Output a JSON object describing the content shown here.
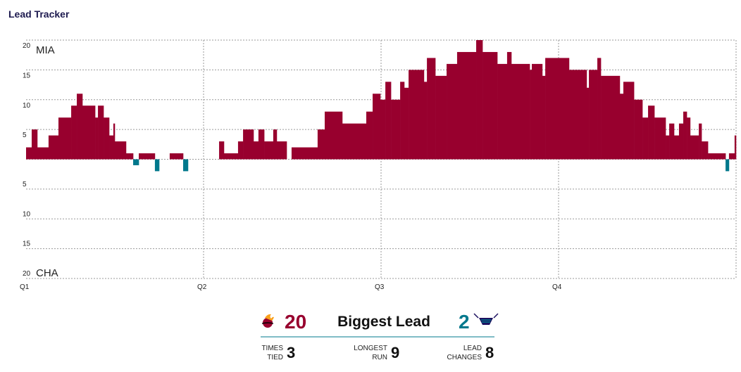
{
  "chart_data": {
    "type": "lead",
    "title": "Lead Tracker",
    "top_label": "MIA",
    "bottom_label": "CHA",
    "positive_color": "#98002e",
    "negative_color": "#00788c",
    "grid": true,
    "xlim": [
      0,
      48
    ],
    "xticks": [
      {
        "value": 0,
        "label": "Q1"
      },
      {
        "value": 12,
        "label": "Q2"
      },
      {
        "value": 24,
        "label": "Q3"
      },
      {
        "value": 36,
        "label": "Q4"
      }
    ],
    "ylim": [
      -20,
      20
    ],
    "yticks": [
      20,
      15,
      10,
      5,
      {
        "value": -5,
        "label": "5"
      },
      {
        "value": -10,
        "label": "10"
      },
      {
        "value": -15,
        "label": "15"
      },
      {
        "value": -20,
        "label": "20"
      }
    ],
    "x": [
      0,
      0.38,
      0.76,
      1.52,
      2.19,
      3.05,
      3.43,
      3.81,
      4.67,
      4.86,
      5.24,
      5.62,
      5.9,
      6.0,
      6.76,
      7.24,
      7.62,
      8.71,
      9.0,
      9.71,
      10.62,
      10.95,
      13.05,
      13.38,
      14.33,
      14.67,
      15.38,
      15.71,
      16.1,
      16.71,
      16.95,
      17.62,
      17.95,
      19.71,
      20.19,
      21.38,
      23.0,
      23.43,
      23.95,
      24.29,
      24.67,
      25.29,
      25.57,
      25.86,
      26.9,
      27.1,
      27.67,
      28.43,
      29.14,
      30.43,
      30.86,
      31.86,
      32.52,
      32.81,
      34.05,
      34.19,
      34.9,
      35.1,
      36.71,
      37.9,
      38.05,
      38.62,
      38.86,
      40.14,
      40.38,
      41.1,
      41.67,
      42.05,
      42.48,
      43.24,
      43.48,
      43.81,
      44.14,
      44.43,
      44.67,
      44.9,
      45.48,
      45.67,
      46.1,
      47.29,
      47.52,
      47.9
    ],
    "values": [
      2,
      5,
      2,
      4,
      7,
      9,
      11,
      9,
      7,
      9,
      7,
      4,
      6,
      3,
      1,
      -1,
      1,
      -2,
      0,
      1,
      -2,
      0,
      3,
      1,
      3,
      5,
      3,
      5,
      3,
      5,
      3,
      0,
      2,
      5,
      8,
      6,
      8,
      11,
      10,
      13,
      10,
      13,
      12,
      15,
      13,
      17,
      14,
      16,
      18,
      20,
      18,
      16,
      18,
      16,
      15,
      16,
      14,
      17,
      15,
      12,
      15,
      17,
      14,
      11,
      13,
      10,
      7,
      9,
      7,
      4,
      6,
      4,
      6,
      8,
      7,
      4,
      6,
      3,
      1,
      -2,
      1,
      4
    ]
  },
  "summary": {
    "biggest_lead": {
      "label": "Biggest Lead",
      "home": 20,
      "away": 2
    },
    "stats": [
      {
        "label": [
          "TIMES",
          "TIED"
        ],
        "value": 3
      },
      {
        "label": [
          "LONGEST",
          "RUN"
        ],
        "value": 9
      },
      {
        "label": [
          "LEAD",
          "CHANGES"
        ],
        "value": 8
      }
    ]
  }
}
